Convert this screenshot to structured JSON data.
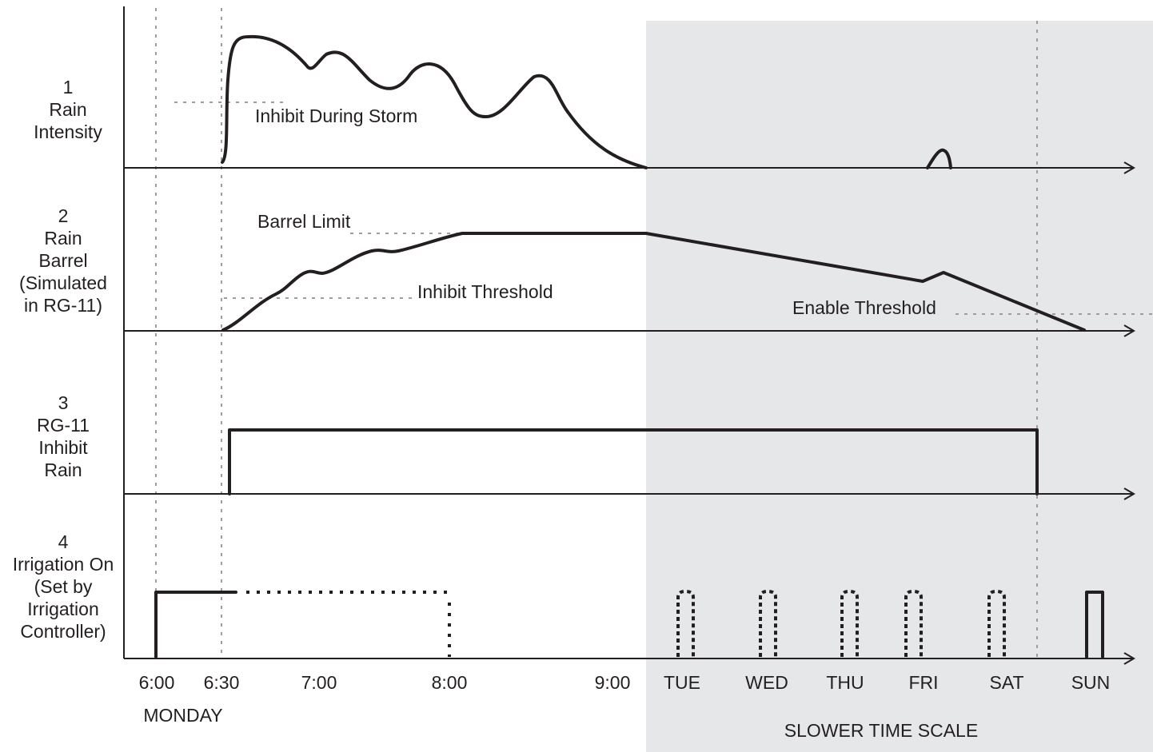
{
  "rows": [
    {
      "number": "1",
      "lines": [
        "Rain",
        "Intensity"
      ]
    },
    {
      "number": "2",
      "lines": [
        "Rain",
        "Barrel",
        "(Simulated",
        "in RG-11)"
      ]
    },
    {
      "number": "3",
      "lines": [
        "RG-11",
        "Inhibit",
        "Rain"
      ]
    },
    {
      "number": "4",
      "lines": [
        "Irrigation On",
        "(Set by",
        "Irrigation",
        "Controller)"
      ]
    }
  ],
  "annotations": {
    "inhibit_during_storm": "Inhibit During Storm",
    "barrel_limit": "Barrel Limit",
    "inhibit_threshold": "Inhibit Threshold",
    "enable_threshold": "Enable Threshold"
  },
  "time_ticks": [
    "6:00",
    "6:30",
    "7:00",
    "8:00",
    "9:00",
    "TUE",
    "WED",
    "THU",
    "FRI",
    "SAT",
    "SUN"
  ],
  "day_label": "MONDAY",
  "slow_scale_label": "SLOWER TIME SCALE",
  "colors": {
    "shaded_region": "#e6e7e8",
    "line": "#231f20",
    "guide": "#9d9d9d"
  }
}
